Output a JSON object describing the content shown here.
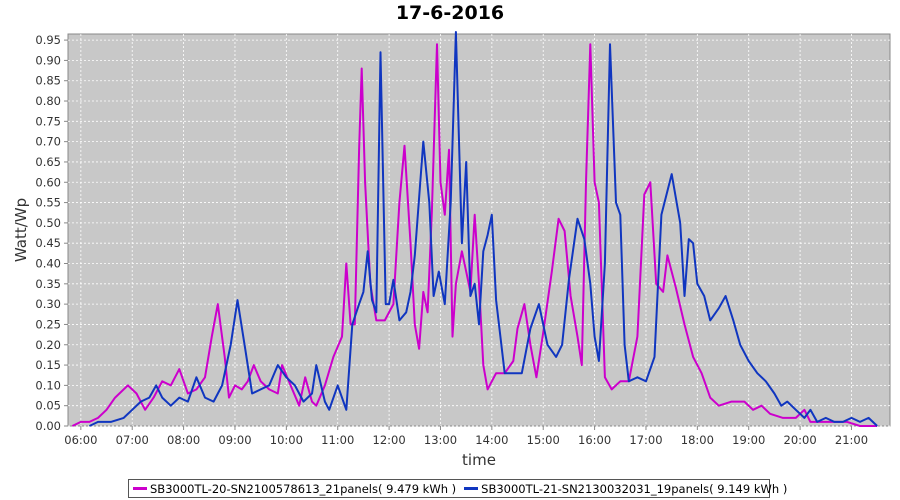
{
  "chart_data": {
    "type": "line",
    "title": "17-6-2016",
    "xlabel": "time",
    "ylabel": "Watt/Wp",
    "xlim": [
      "05:45",
      "21:45"
    ],
    "ylim": [
      0,
      0.965
    ],
    "yticks": [
      "0.00",
      "0.05",
      "0.10",
      "0.15",
      "0.20",
      "0.25",
      "0.30",
      "0.35",
      "0.40",
      "0.45",
      "0.50",
      "0.55",
      "0.60",
      "0.65",
      "0.70",
      "0.75",
      "0.80",
      "0.85",
      "0.90",
      "0.95"
    ],
    "xticks": [
      "06:00",
      "07:00",
      "08:00",
      "09:00",
      "10:00",
      "11:00",
      "12:00",
      "13:00",
      "14:00",
      "15:00",
      "16:00",
      "17:00",
      "18:00",
      "19:00",
      "20:00",
      "21:00"
    ],
    "grid": true,
    "legend_position": "bottom",
    "series": [
      {
        "name": "SB3000TL-20-SN2100578613_21panels( 9.479 kWh )",
        "color": "#cc00cc",
        "points": [
          [
            "05:50",
            0.0
          ],
          [
            "06:00",
            0.01
          ],
          [
            "06:10",
            0.01
          ],
          [
            "06:20",
            0.02
          ],
          [
            "06:30",
            0.04
          ],
          [
            "06:40",
            0.07
          ],
          [
            "06:55",
            0.1
          ],
          [
            "07:05",
            0.08
          ],
          [
            "07:15",
            0.04
          ],
          [
            "07:25",
            0.07
          ],
          [
            "07:35",
            0.11
          ],
          [
            "07:45",
            0.1
          ],
          [
            "07:55",
            0.14
          ],
          [
            "08:05",
            0.08
          ],
          [
            "08:15",
            0.09
          ],
          [
            "08:25",
            0.12
          ],
          [
            "08:33",
            0.22
          ],
          [
            "08:40",
            0.3
          ],
          [
            "08:48",
            0.17
          ],
          [
            "08:53",
            0.07
          ],
          [
            "09:00",
            0.1
          ],
          [
            "09:08",
            0.09
          ],
          [
            "09:15",
            0.11
          ],
          [
            "09:22",
            0.15
          ],
          [
            "09:30",
            0.11
          ],
          [
            "09:40",
            0.09
          ],
          [
            "09:50",
            0.08
          ],
          [
            "09:55",
            0.15
          ],
          [
            "10:05",
            0.1
          ],
          [
            "10:15",
            0.05
          ],
          [
            "10:22",
            0.12
          ],
          [
            "10:30",
            0.06
          ],
          [
            "10:35",
            0.05
          ],
          [
            "10:45",
            0.1
          ],
          [
            "10:55",
            0.17
          ],
          [
            "11:05",
            0.22
          ],
          [
            "11:10",
            0.4
          ],
          [
            "11:15",
            0.25
          ],
          [
            "11:20",
            0.25
          ],
          [
            "11:25",
            0.68
          ],
          [
            "11:28",
            0.88
          ],
          [
            "11:32",
            0.6
          ],
          [
            "11:38",
            0.35
          ],
          [
            "11:45",
            0.26
          ],
          [
            "11:55",
            0.26
          ],
          [
            "12:05",
            0.3
          ],
          [
            "12:12",
            0.55
          ],
          [
            "12:18",
            0.69
          ],
          [
            "12:25",
            0.45
          ],
          [
            "12:30",
            0.25
          ],
          [
            "12:35",
            0.19
          ],
          [
            "12:40",
            0.33
          ],
          [
            "12:45",
            0.28
          ],
          [
            "12:50",
            0.53
          ],
          [
            "12:56",
            0.94
          ],
          [
            "13:00",
            0.6
          ],
          [
            "13:05",
            0.52
          ],
          [
            "13:10",
            0.68
          ],
          [
            "13:14",
            0.22
          ],
          [
            "13:18",
            0.35
          ],
          [
            "13:25",
            0.43
          ],
          [
            "13:30",
            0.38
          ],
          [
            "13:35",
            0.33
          ],
          [
            "13:40",
            0.52
          ],
          [
            "13:45",
            0.35
          ],
          [
            "13:50",
            0.15
          ],
          [
            "13:55",
            0.09
          ],
          [
            "14:05",
            0.13
          ],
          [
            "14:15",
            0.13
          ],
          [
            "14:25",
            0.16
          ],
          [
            "14:30",
            0.24
          ],
          [
            "14:38",
            0.3
          ],
          [
            "14:45",
            0.2
          ],
          [
            "14:52",
            0.12
          ],
          [
            "15:00",
            0.23
          ],
          [
            "15:10",
            0.38
          ],
          [
            "15:18",
            0.51
          ],
          [
            "15:25",
            0.48
          ],
          [
            "15:32",
            0.32
          ],
          [
            "15:40",
            0.22
          ],
          [
            "15:45",
            0.15
          ],
          [
            "15:50",
            0.6
          ],
          [
            "15:55",
            0.94
          ],
          [
            "16:00",
            0.6
          ],
          [
            "16:05",
            0.55
          ],
          [
            "16:12",
            0.12
          ],
          [
            "16:20",
            0.09
          ],
          [
            "16:30",
            0.11
          ],
          [
            "16:40",
            0.11
          ],
          [
            "16:50",
            0.22
          ],
          [
            "16:58",
            0.57
          ],
          [
            "17:05",
            0.6
          ],
          [
            "17:12",
            0.35
          ],
          [
            "17:20",
            0.33
          ],
          [
            "17:25",
            0.42
          ],
          [
            "17:35",
            0.34
          ],
          [
            "17:45",
            0.25
          ],
          [
            "17:55",
            0.17
          ],
          [
            "18:05",
            0.13
          ],
          [
            "18:15",
            0.07
          ],
          [
            "18:25",
            0.05
          ],
          [
            "18:40",
            0.06
          ],
          [
            "18:55",
            0.06
          ],
          [
            "19:05",
            0.04
          ],
          [
            "19:15",
            0.05
          ],
          [
            "19:25",
            0.03
          ],
          [
            "19:40",
            0.02
          ],
          [
            "19:55",
            0.02
          ],
          [
            "20:05",
            0.04
          ],
          [
            "20:12",
            0.01
          ],
          [
            "20:25",
            0.01
          ],
          [
            "20:40",
            0.01
          ],
          [
            "20:55",
            0.01
          ],
          [
            "21:10",
            0.0
          ],
          [
            "21:30",
            0.0
          ]
        ]
      },
      {
        "name": "SB3000TL-21-SN2130032031_19panels( 9.149 kWh )",
        "color": "#1036c0",
        "points": [
          [
            "06:10",
            0.0
          ],
          [
            "06:20",
            0.01
          ],
          [
            "06:35",
            0.01
          ],
          [
            "06:50",
            0.02
          ],
          [
            "07:00",
            0.04
          ],
          [
            "07:10",
            0.06
          ],
          [
            "07:20",
            0.07
          ],
          [
            "07:28",
            0.1
          ],
          [
            "07:35",
            0.07
          ],
          [
            "07:45",
            0.05
          ],
          [
            "07:55",
            0.07
          ],
          [
            "08:05",
            0.06
          ],
          [
            "08:15",
            0.12
          ],
          [
            "08:25",
            0.07
          ],
          [
            "08:35",
            0.06
          ],
          [
            "08:45",
            0.1
          ],
          [
            "08:55",
            0.2
          ],
          [
            "09:03",
            0.31
          ],
          [
            "09:12",
            0.19
          ],
          [
            "09:20",
            0.08
          ],
          [
            "09:30",
            0.09
          ],
          [
            "09:40",
            0.1
          ],
          [
            "09:50",
            0.15
          ],
          [
            "10:00",
            0.12
          ],
          [
            "10:10",
            0.1
          ],
          [
            "10:20",
            0.06
          ],
          [
            "10:30",
            0.08
          ],
          [
            "10:35",
            0.15
          ],
          [
            "10:45",
            0.06
          ],
          [
            "10:50",
            0.04
          ],
          [
            "11:00",
            0.1
          ],
          [
            "11:10",
            0.04
          ],
          [
            "11:17",
            0.25
          ],
          [
            "11:25",
            0.3
          ],
          [
            "11:30",
            0.33
          ],
          [
            "11:35",
            0.43
          ],
          [
            "11:40",
            0.31
          ],
          [
            "11:45",
            0.28
          ],
          [
            "11:50",
            0.92
          ],
          [
            "11:56",
            0.3
          ],
          [
            "12:00",
            0.3
          ],
          [
            "12:05",
            0.36
          ],
          [
            "12:12",
            0.26
          ],
          [
            "12:20",
            0.28
          ],
          [
            "12:25",
            0.33
          ],
          [
            "12:30",
            0.42
          ],
          [
            "12:40",
            0.7
          ],
          [
            "12:47",
            0.55
          ],
          [
            "12:52",
            0.32
          ],
          [
            "12:58",
            0.38
          ],
          [
            "13:05",
            0.3
          ],
          [
            "13:12",
            0.55
          ],
          [
            "13:18",
            0.97
          ],
          [
            "13:25",
            0.45
          ],
          [
            "13:30",
            0.65
          ],
          [
            "13:35",
            0.32
          ],
          [
            "13:40",
            0.35
          ],
          [
            "13:45",
            0.25
          ],
          [
            "13:50",
            0.43
          ],
          [
            "13:55",
            0.47
          ],
          [
            "14:00",
            0.52
          ],
          [
            "14:05",
            0.31
          ],
          [
            "14:10",
            0.22
          ],
          [
            "14:15",
            0.13
          ],
          [
            "14:25",
            0.13
          ],
          [
            "14:35",
            0.13
          ],
          [
            "14:45",
            0.24
          ],
          [
            "14:55",
            0.3
          ],
          [
            "15:05",
            0.2
          ],
          [
            "15:15",
            0.17
          ],
          [
            "15:22",
            0.2
          ],
          [
            "15:30",
            0.36
          ],
          [
            "15:40",
            0.51
          ],
          [
            "15:48",
            0.46
          ],
          [
            "15:55",
            0.35
          ],
          [
            "16:00",
            0.22
          ],
          [
            "16:05",
            0.16
          ],
          [
            "16:12",
            0.4
          ],
          [
            "16:18",
            0.94
          ],
          [
            "16:25",
            0.55
          ],
          [
            "16:30",
            0.52
          ],
          [
            "16:35",
            0.2
          ],
          [
            "16:40",
            0.11
          ],
          [
            "16:50",
            0.12
          ],
          [
            "17:00",
            0.11
          ],
          [
            "17:10",
            0.17
          ],
          [
            "17:18",
            0.52
          ],
          [
            "17:30",
            0.62
          ],
          [
            "17:40",
            0.5
          ],
          [
            "17:45",
            0.32
          ],
          [
            "17:50",
            0.46
          ],
          [
            "17:55",
            0.45
          ],
          [
            "18:00",
            0.35
          ],
          [
            "18:08",
            0.32
          ],
          [
            "18:15",
            0.26
          ],
          [
            "18:25",
            0.29
          ],
          [
            "18:33",
            0.32
          ],
          [
            "18:42",
            0.26
          ],
          [
            "18:50",
            0.2
          ],
          [
            "19:00",
            0.16
          ],
          [
            "19:10",
            0.13
          ],
          [
            "19:20",
            0.11
          ],
          [
            "19:30",
            0.08
          ],
          [
            "19:38",
            0.05
          ],
          [
            "19:45",
            0.06
          ],
          [
            "19:55",
            0.04
          ],
          [
            "20:05",
            0.02
          ],
          [
            "20:12",
            0.04
          ],
          [
            "20:20",
            0.01
          ],
          [
            "20:30",
            0.02
          ],
          [
            "20:40",
            0.01
          ],
          [
            "20:50",
            0.01
          ],
          [
            "21:00",
            0.02
          ],
          [
            "21:10",
            0.01
          ],
          [
            "21:20",
            0.02
          ],
          [
            "21:30",
            0.0
          ]
        ]
      }
    ]
  }
}
